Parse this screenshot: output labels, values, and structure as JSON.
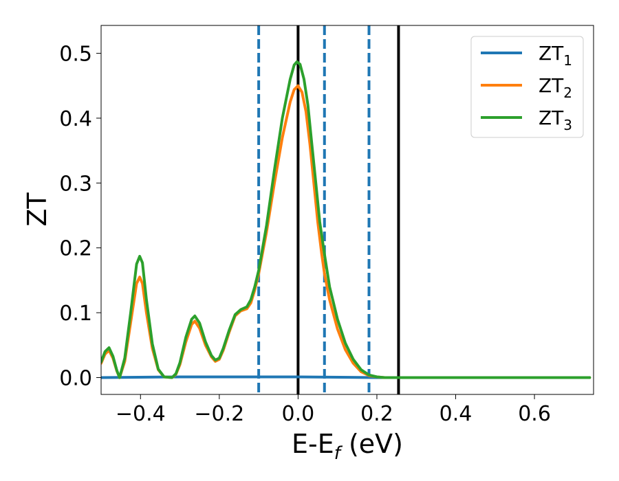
{
  "chart_data": {
    "type": "line",
    "xlabel": {
      "main": "E-E",
      "sub": "f",
      "tail": " (eV)"
    },
    "ylabel": "ZT",
    "xlim": [
      -0.5,
      0.75
    ],
    "ylim": [
      -0.026,
      0.543
    ],
    "xticks": [
      -0.4,
      -0.2,
      0.0,
      0.2,
      0.4,
      0.6
    ],
    "xtick_labels": [
      "−0.4",
      "−0.2",
      "0.0",
      "0.2",
      "0.4",
      "0.6"
    ],
    "yticks": [
      0.0,
      0.1,
      0.2,
      0.3,
      0.4,
      0.5
    ],
    "ytick_labels": [
      "0.0",
      "0.1",
      "0.2",
      "0.3",
      "0.4",
      "0.5"
    ],
    "grid": false,
    "legend": {
      "placement": "top-right"
    },
    "vlines": [
      {
        "x": -0.1,
        "style": "dashed",
        "color": "#1f77b4"
      },
      {
        "x": 0.0,
        "style": "solid",
        "color": "#000000"
      },
      {
        "x": 0.067,
        "style": "dashed",
        "color": "#1f77b4"
      },
      {
        "x": 0.18,
        "style": "dashed",
        "color": "#1f77b4"
      },
      {
        "x": 0.255,
        "style": "solid",
        "color": "#000000"
      }
    ],
    "series": [
      {
        "name": "ZT",
        "sub": "1",
        "color": "#1f77b4",
        "points": [
          [
            -0.5,
            0.0
          ],
          [
            -0.3,
            0.001
          ],
          [
            0.0,
            0.001
          ],
          [
            0.2,
            0.0
          ],
          [
            0.74,
            0.0
          ]
        ]
      },
      {
        "name": "ZT",
        "sub": "2",
        "color": "#ff7f0e",
        "points": [
          [
            -0.5,
            0.022
          ],
          [
            -0.49,
            0.036
          ],
          [
            -0.48,
            0.042
          ],
          [
            -0.47,
            0.03
          ],
          [
            -0.46,
            0.01
          ],
          [
            -0.453,
            0.0
          ],
          [
            -0.44,
            0.025
          ],
          [
            -0.425,
            0.085
          ],
          [
            -0.41,
            0.145
          ],
          [
            -0.402,
            0.155
          ],
          [
            -0.395,
            0.145
          ],
          [
            -0.385,
            0.1
          ],
          [
            -0.37,
            0.045
          ],
          [
            -0.355,
            0.012
          ],
          [
            -0.34,
            0.001
          ],
          [
            -0.32,
            0.0
          ],
          [
            -0.31,
            0.005
          ],
          [
            -0.3,
            0.02
          ],
          [
            -0.285,
            0.055
          ],
          [
            -0.27,
            0.082
          ],
          [
            -0.262,
            0.087
          ],
          [
            -0.25,
            0.076
          ],
          [
            -0.235,
            0.05
          ],
          [
            -0.22,
            0.032
          ],
          [
            -0.21,
            0.025
          ],
          [
            -0.2,
            0.028
          ],
          [
            -0.19,
            0.042
          ],
          [
            -0.175,
            0.07
          ],
          [
            -0.16,
            0.095
          ],
          [
            -0.145,
            0.103
          ],
          [
            -0.13,
            0.106
          ],
          [
            -0.12,
            0.115
          ],
          [
            -0.11,
            0.135
          ],
          [
            -0.1,
            0.16
          ],
          [
            -0.08,
            0.225
          ],
          [
            -0.06,
            0.3
          ],
          [
            -0.04,
            0.37
          ],
          [
            -0.02,
            0.425
          ],
          [
            -0.01,
            0.444
          ],
          [
            0.0,
            0.45
          ],
          [
            0.01,
            0.44
          ],
          [
            0.02,
            0.41
          ],
          [
            0.03,
            0.36
          ],
          [
            0.04,
            0.3
          ],
          [
            0.05,
            0.24
          ],
          [
            0.06,
            0.19
          ],
          [
            0.067,
            0.16
          ],
          [
            0.08,
            0.12
          ],
          [
            0.1,
            0.075
          ],
          [
            0.12,
            0.043
          ],
          [
            0.14,
            0.022
          ],
          [
            0.16,
            0.009
          ],
          [
            0.18,
            0.003
          ],
          [
            0.2,
            0.001
          ],
          [
            0.22,
            0.0
          ],
          [
            0.74,
            0.0
          ]
        ]
      },
      {
        "name": "ZT",
        "sub": "3",
        "color": "#2ca02c",
        "points": [
          [
            -0.5,
            0.024
          ],
          [
            -0.49,
            0.04
          ],
          [
            -0.48,
            0.046
          ],
          [
            -0.47,
            0.033
          ],
          [
            -0.46,
            0.011
          ],
          [
            -0.453,
            0.0
          ],
          [
            -0.44,
            0.03
          ],
          [
            -0.425,
            0.1
          ],
          [
            -0.41,
            0.175
          ],
          [
            -0.402,
            0.187
          ],
          [
            -0.395,
            0.177
          ],
          [
            -0.385,
            0.12
          ],
          [
            -0.37,
            0.052
          ],
          [
            -0.355,
            0.013
          ],
          [
            -0.34,
            0.001
          ],
          [
            -0.32,
            0.0
          ],
          [
            -0.31,
            0.006
          ],
          [
            -0.3,
            0.023
          ],
          [
            -0.285,
            0.062
          ],
          [
            -0.27,
            0.09
          ],
          [
            -0.262,
            0.095
          ],
          [
            -0.25,
            0.084
          ],
          [
            -0.235,
            0.055
          ],
          [
            -0.22,
            0.034
          ],
          [
            -0.21,
            0.027
          ],
          [
            -0.2,
            0.03
          ],
          [
            -0.19,
            0.045
          ],
          [
            -0.175,
            0.073
          ],
          [
            -0.16,
            0.097
          ],
          [
            -0.145,
            0.105
          ],
          [
            -0.13,
            0.109
          ],
          [
            -0.12,
            0.12
          ],
          [
            -0.11,
            0.14
          ],
          [
            -0.1,
            0.165
          ],
          [
            -0.08,
            0.235
          ],
          [
            -0.06,
            0.32
          ],
          [
            -0.04,
            0.4
          ],
          [
            -0.02,
            0.46
          ],
          [
            -0.01,
            0.482
          ],
          [
            -0.003,
            0.487
          ],
          [
            0.005,
            0.483
          ],
          [
            0.015,
            0.46
          ],
          [
            0.025,
            0.42
          ],
          [
            0.035,
            0.36
          ],
          [
            0.045,
            0.3
          ],
          [
            0.055,
            0.24
          ],
          [
            0.067,
            0.19
          ],
          [
            0.08,
            0.14
          ],
          [
            0.1,
            0.09
          ],
          [
            0.12,
            0.053
          ],
          [
            0.14,
            0.028
          ],
          [
            0.16,
            0.012
          ],
          [
            0.18,
            0.004
          ],
          [
            0.2,
            0.001
          ],
          [
            0.22,
            0.0
          ],
          [
            0.74,
            0.0
          ]
        ]
      }
    ]
  }
}
